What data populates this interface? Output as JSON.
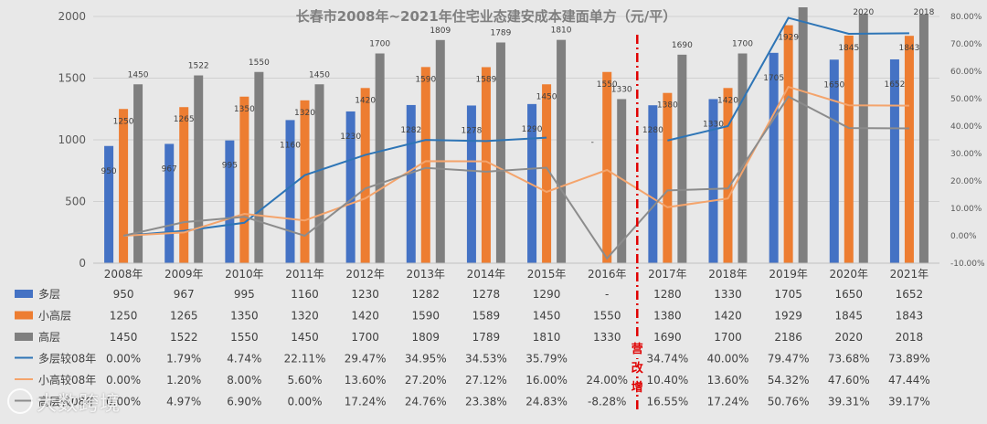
{
  "chart_data": {
    "type": "bar",
    "title": "长春市2008年~2021年住宅业态建安成本建面单方（元/平）",
    "categories": [
      "2008年",
      "2009年",
      "2010年",
      "2011年",
      "2012年",
      "2013年",
      "2014年",
      "2015年",
      "2016年",
      "2017年",
      "2018年",
      "2019年",
      "2020年",
      "2021年"
    ],
    "y_left": {
      "min": 0,
      "max": 2000,
      "ticks": [
        "0",
        "500",
        "1000",
        "1500",
        "2000"
      ],
      "tick_values": [
        0,
        500,
        1000,
        1500,
        2000
      ]
    },
    "y_right": {
      "min": -10,
      "max": 80,
      "ticks": [
        "-10.00%",
        "0.00%",
        "10.00%",
        "20.00%",
        "30.00%",
        "40.00%",
        "50.00%",
        "60.00%",
        "70.00%",
        "80.00%"
      ],
      "tick_values": [
        -10,
        0,
        10,
        20,
        30,
        40,
        50,
        60,
        70,
        80
      ]
    },
    "bar_series": [
      {
        "name": "多层",
        "color": "#4472c4",
        "values": [
          950,
          967,
          995,
          1160,
          1230,
          1282,
          1278,
          1290,
          null,
          1280,
          1330,
          1705,
          1650,
          1652
        ],
        "bar_labels": [
          "950",
          "967",
          "995",
          "1160",
          "1230",
          "1282",
          "1278",
          "1290",
          "-",
          "1280",
          "1330",
          "1705",
          "1650",
          "1652"
        ],
        "table": [
          "950",
          "967",
          "995",
          "1160",
          "1230",
          "1282",
          "1278",
          "1290",
          "-",
          "1280",
          "1330",
          "1705",
          "1650",
          "1652"
        ]
      },
      {
        "name": "小高层",
        "color": "#ed7d31",
        "values": [
          1250,
          1265,
          1350,
          1320,
          1420,
          1590,
          1589,
          1450,
          1550,
          1380,
          1420,
          1929,
          1845,
          1843
        ],
        "bar_labels": [
          "1250",
          "1265",
          "1350",
          "1320",
          "1420",
          "1590",
          "1589",
          "1450",
          "1550",
          "1380",
          "1420",
          "1929",
          "1845",
          "1843"
        ],
        "table": [
          "1250",
          "1265",
          "1350",
          "1320",
          "1420",
          "1590",
          "1589",
          "1450",
          "1550",
          "1380",
          "1420",
          "1929",
          "1845",
          "1843"
        ]
      },
      {
        "name": "高层",
        "color": "#7f7f7f",
        "values": [
          1450,
          1522,
          1550,
          1450,
          1700,
          1809,
          1789,
          1810,
          1330,
          1690,
          1700,
          2186,
          2020,
          2018
        ],
        "bar_labels": [
          "1450",
          "1522",
          "1550",
          "1450",
          "1700",
          "1809",
          "1789",
          "1810",
          "1330",
          "1690",
          "1700",
          "",
          "2020",
          "2018"
        ],
        "table": [
          "1450",
          "1522",
          "1550",
          "1450",
          "1700",
          "1809",
          "1789",
          "1810",
          "1330",
          "1690",
          "1700",
          "2186",
          "2020",
          "2018"
        ]
      }
    ],
    "line_series": [
      {
        "name": "多层较08年",
        "color": "#2e75b6",
        "values": [
          0.0,
          1.79,
          4.74,
          22.11,
          29.47,
          34.95,
          34.53,
          35.79,
          null,
          34.74,
          40.0,
          79.47,
          73.68,
          73.89
        ],
        "table": [
          "0.00%",
          "1.79%",
          "4.74%",
          "22.11%",
          "29.47%",
          "34.95%",
          "34.53%",
          "35.79%",
          "",
          "34.74%",
          "40.00%",
          "79.47%",
          "73.68%",
          "73.89%"
        ]
      },
      {
        "name": "小高较08年",
        "color": "#f4a46c",
        "values": [
          0.0,
          1.2,
          8.0,
          5.6,
          13.6,
          27.2,
          27.12,
          16.0,
          24.0,
          10.4,
          13.6,
          54.32,
          47.6,
          47.44
        ],
        "table": [
          "0.00%",
          "1.20%",
          "8.00%",
          "5.60%",
          "13.60%",
          "27.20%",
          "27.12%",
          "16.00%",
          "24.00%",
          "10.40%",
          "13.60%",
          "54.32%",
          "47.60%",
          "47.44%"
        ]
      },
      {
        "name": "高层较08年",
        "color": "#8c8c8c",
        "values": [
          0.0,
          4.97,
          6.9,
          0.0,
          17.24,
          24.76,
          23.38,
          24.83,
          -8.28,
          16.55,
          17.24,
          50.76,
          39.31,
          39.17
        ],
        "table": [
          "0.00%",
          "4.97%",
          "6.90%",
          "0.00%",
          "17.24%",
          "24.76%",
          "23.38%",
          "24.83%",
          "-8.28%",
          "16.55%",
          "17.24%",
          "50.76%",
          "39.31%",
          "39.17%"
        ]
      }
    ],
    "divider": {
      "label_chars": [
        "营",
        "改",
        "增"
      ],
      "color": "#e00000",
      "after_category": "2016年"
    },
    "grid": true,
    "legend": "bottom-table"
  },
  "watermark": {
    "text": "大数跨境"
  }
}
